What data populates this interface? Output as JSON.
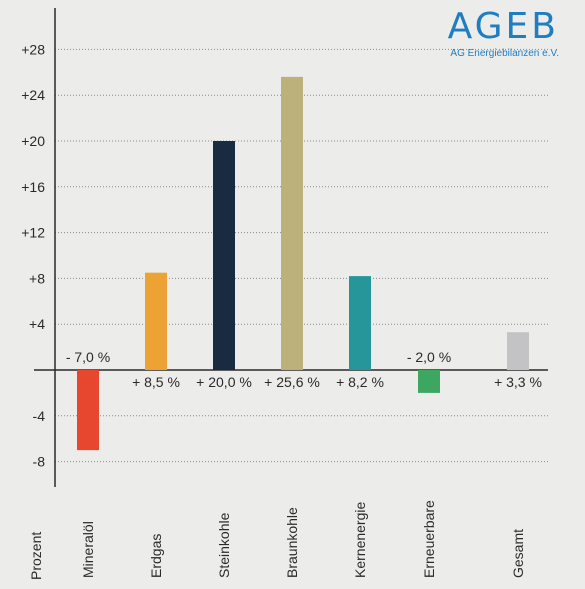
{
  "logo": {
    "title": "AGEB",
    "subtitle": "AG Energiebilanzen e.V."
  },
  "chart_data": {
    "type": "bar",
    "ylabel": "Prozent",
    "categories": [
      "Mineralöl",
      "Erdgas",
      "Steinkohle",
      "Braunkohle",
      "Kernenergie",
      "Erneuerbare",
      "Gesamt"
    ],
    "values": [
      -7.0,
      8.5,
      20.0,
      25.6,
      8.2,
      -2.0,
      3.3
    ],
    "value_labels": [
      "- 7,0 %",
      "+ 8,5 %",
      "+ 20,0 %",
      "+ 25,6 %",
      "+ 8,2 %",
      "- 2,0 %",
      "+ 3,3 %"
    ],
    "colors": [
      "#e8472f",
      "#eda334",
      "#182b40",
      "#bcb07b",
      "#26969a",
      "#3da760",
      "#c3c3c5"
    ],
    "yticks": [
      28,
      24,
      20,
      16,
      12,
      8,
      4,
      -4,
      -8
    ],
    "ytick_labels": [
      "+28",
      "+24",
      "+20",
      "+16",
      "+12",
      "+8",
      "+4",
      "-4",
      "-8"
    ],
    "ylim": [
      -10.3,
      31.4
    ],
    "grid": true
  }
}
